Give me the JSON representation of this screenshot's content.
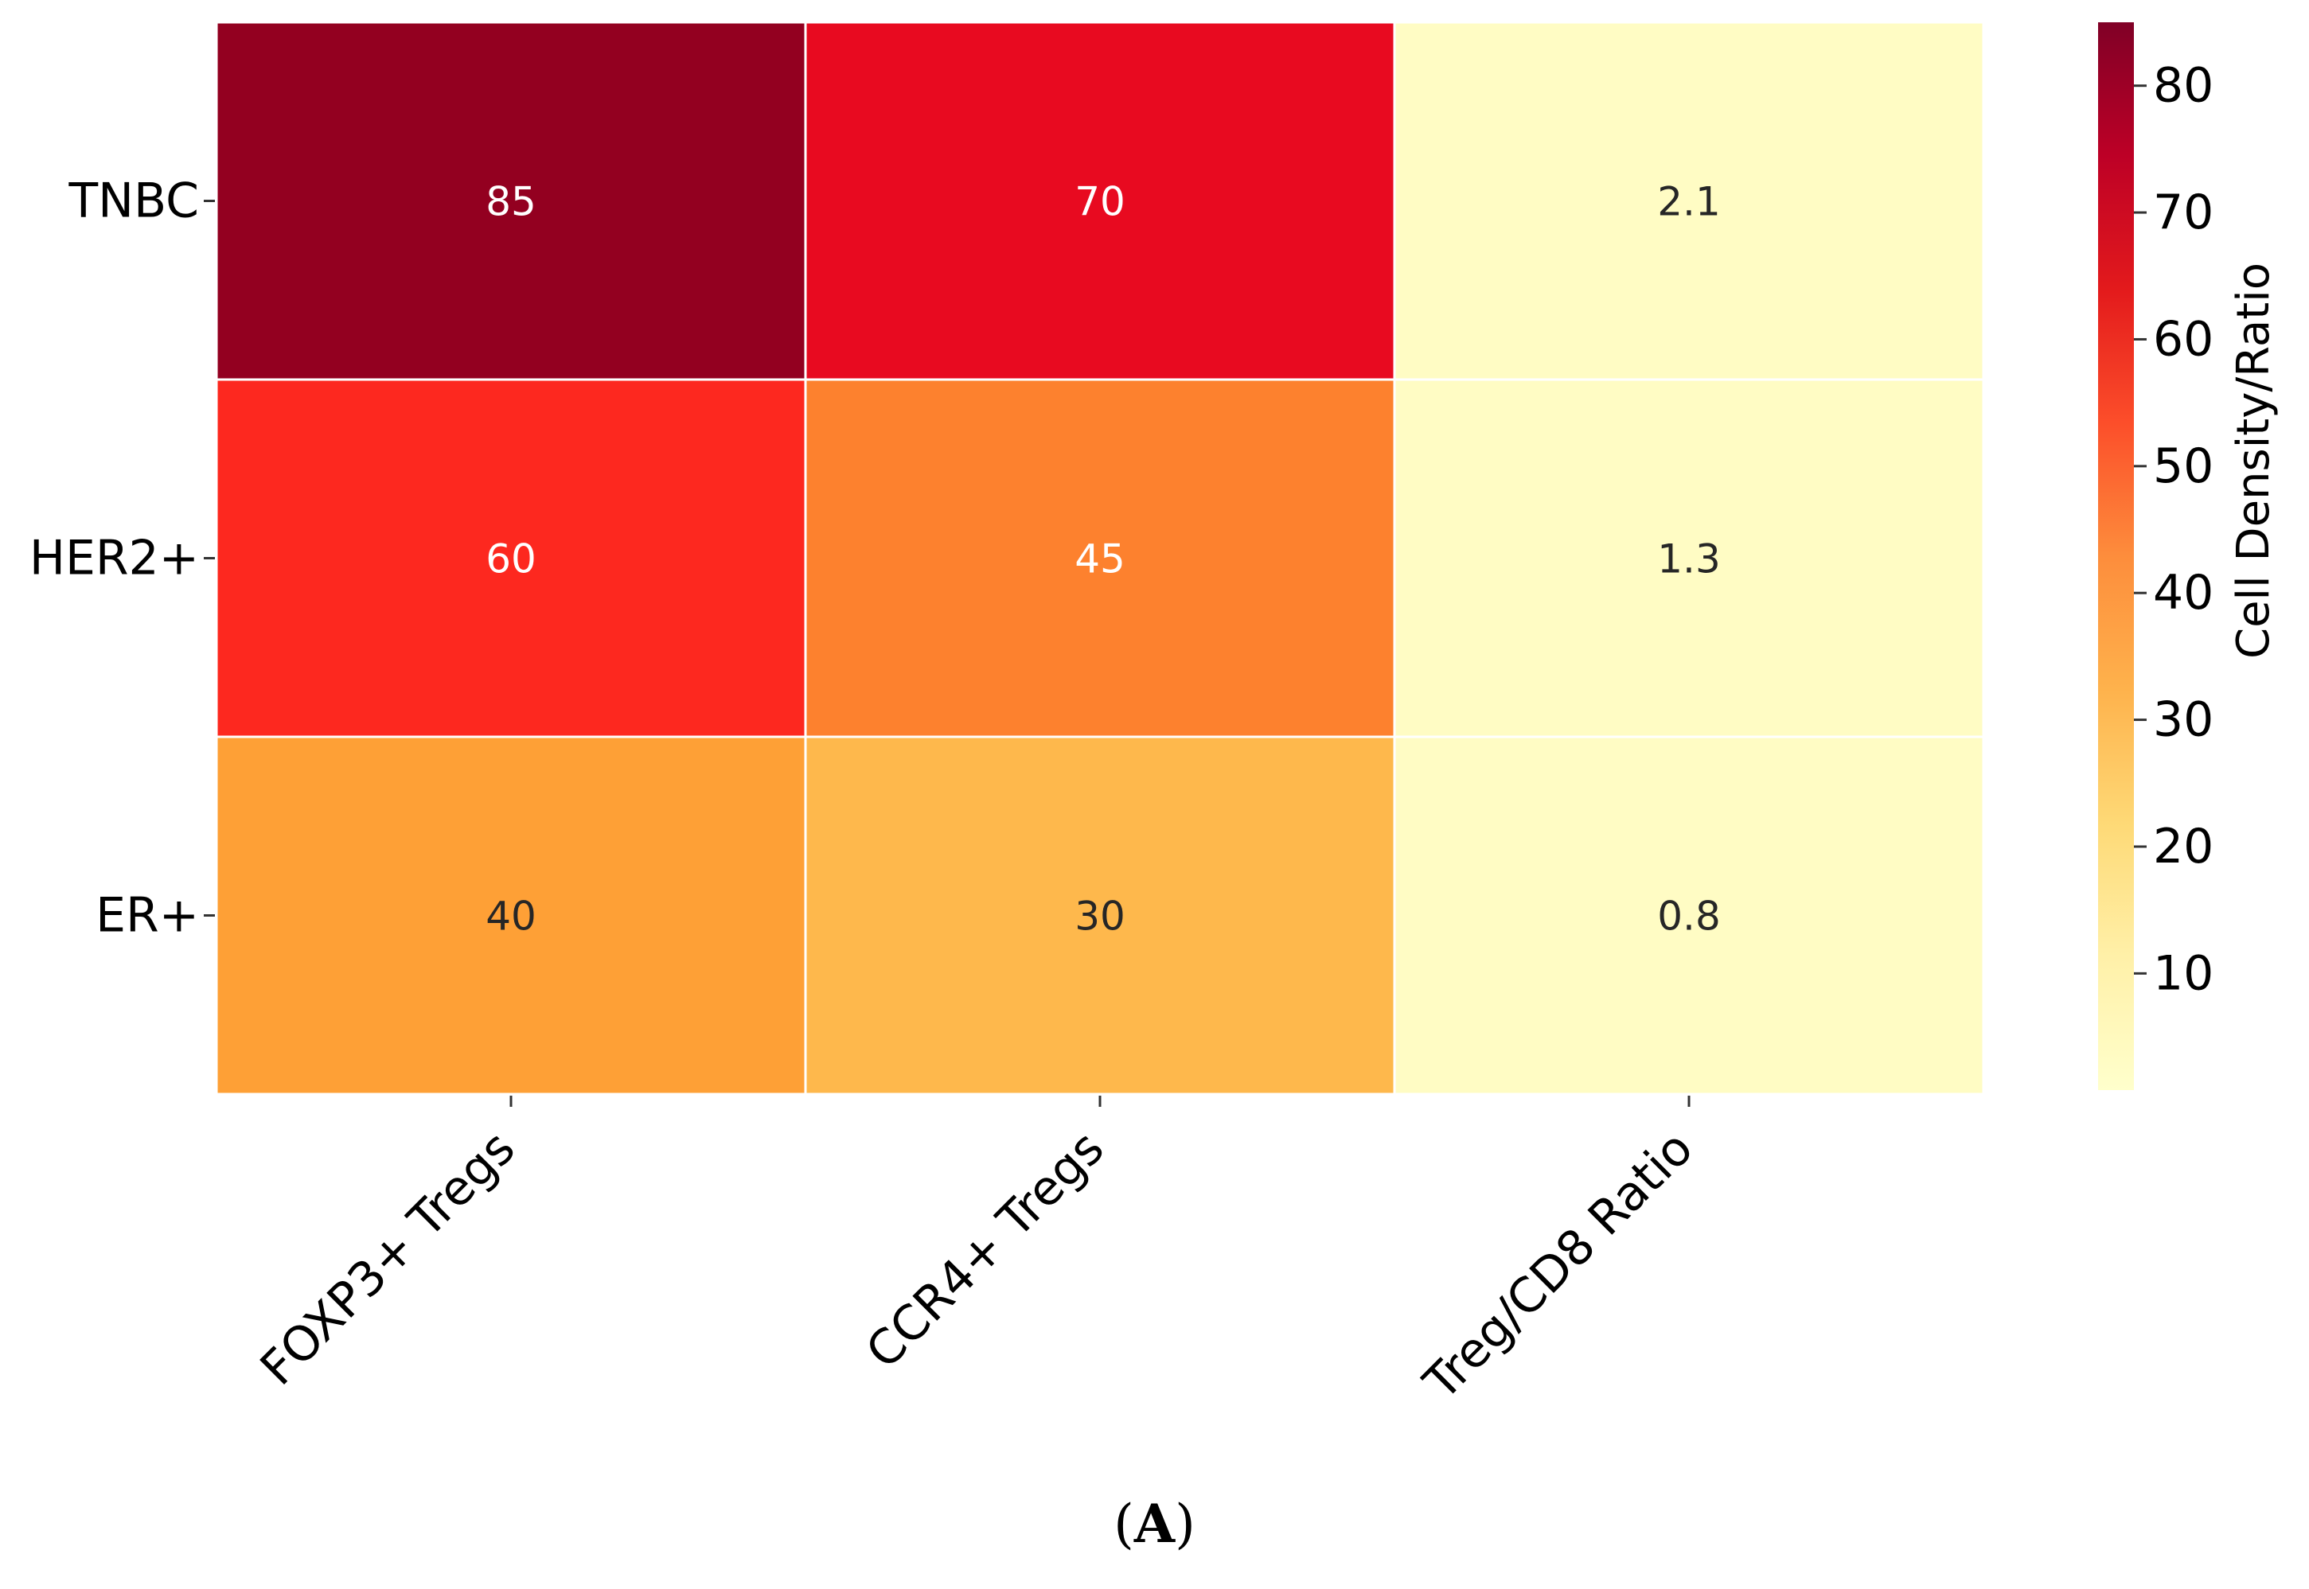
{
  "chart_data": {
    "type": "heatmap",
    "rows": [
      "TNBC",
      "HER2+",
      "ER+"
    ],
    "columns": [
      "FOXP3+ Tregs",
      "CCR4+ Tregs",
      "Treg/CD8 Ratio"
    ],
    "values": [
      [
        85,
        70,
        2.1
      ],
      [
        60,
        45,
        1.3
      ],
      [
        40,
        30,
        0.8
      ]
    ],
    "value_labels": [
      [
        "85",
        "70",
        "2.1"
      ],
      [
        "60",
        "45",
        "1.3"
      ],
      [
        "40",
        "30",
        "0.8"
      ]
    ],
    "colorscale": "YlOrRd",
    "color_range": [
      0.8,
      85
    ],
    "colorbar": {
      "label": "Cell Density/Ratio",
      "ticks": [
        10,
        20,
        30,
        40,
        50,
        60,
        70,
        80
      ],
      "tick_labels": [
        "10",
        "20",
        "30",
        "40",
        "50",
        "60",
        "70",
        "80"
      ]
    },
    "cell_colors": [
      [
        "#930020",
        "#e80a20",
        "#fffcc4"
      ],
      [
        "#fd281f",
        "#fd812e",
        "#fffcc4"
      ],
      [
        "#fea036",
        "#feb84c",
        "#fffcc4"
      ]
    ],
    "text_colors": [
      [
        "#ffffff",
        "#ffffff",
        "#262626"
      ],
      [
        "#ffffff",
        "#ffffff",
        "#262626"
      ],
      [
        "#262626",
        "#262626",
        "#262626"
      ]
    ]
  },
  "panel": {
    "open": "(",
    "letter": "A",
    "close": ")"
  }
}
